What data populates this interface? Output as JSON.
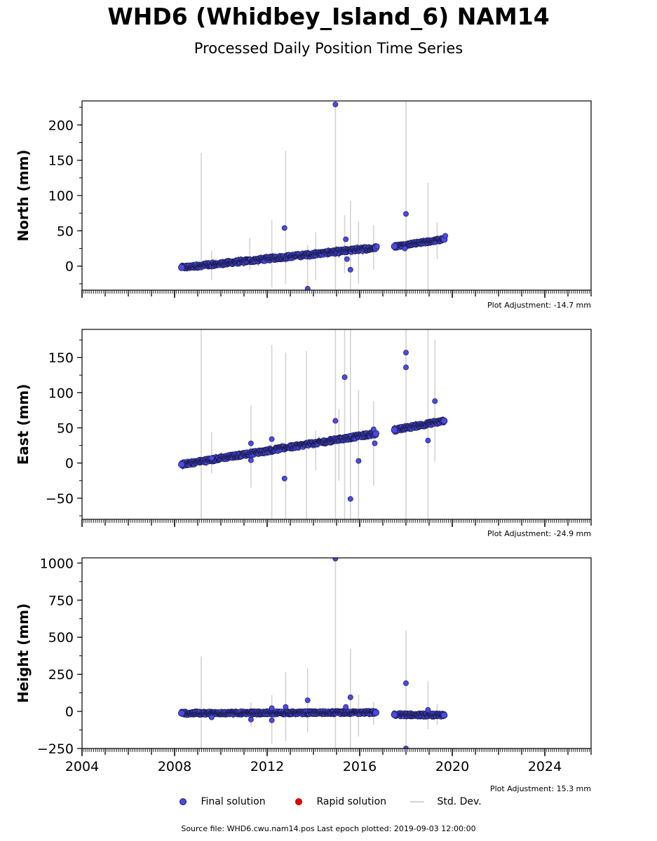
{
  "header": {
    "title": "WHD6 (Whidbey_Island_6) NAM14",
    "subtitle": "Processed Daily Position Time Series"
  },
  "adjustments": {
    "north": "Plot Adjustment: -14.7 mm",
    "east": "Plot Adjustment: -24.9 mm",
    "height": "Plot Adjustment: 15.3 mm"
  },
  "legend": {
    "final": "Final solution",
    "rapid": "Rapid solution",
    "std": "Std. Dev."
  },
  "footer": "Source file: WHD6.cwu.nam14.pos  Last epoch plotted: 2019-09-03 12:00:00",
  "colors": {
    "final": "#4b4be8",
    "final_edge": "#1c1c50",
    "rapid": "#e00000",
    "stddev": "#d3d3d3"
  },
  "chart_data": [
    {
      "type": "scatter",
      "ylabel": "North (mm)",
      "xlim": [
        2004,
        2026
      ],
      "ylim": [
        -34,
        234
      ],
      "yticks": [
        0,
        50,
        100,
        150,
        200
      ],
      "xticks": [
        2004,
        2008,
        2012,
        2016,
        2020,
        2024
      ],
      "xticklabels_visible": false,
      "segments": [
        {
          "x0": 2008.3,
          "x1": 2016.7,
          "y0": -2,
          "y1": 26,
          "jitter": 3
        },
        {
          "x0": 2017.5,
          "x1": 2019.65,
          "y0": 28,
          "y1": 38,
          "jitter": 2.5
        }
      ],
      "outliers": [
        {
          "x": 2014.95,
          "y": 229
        },
        {
          "x": 2012.75,
          "y": 54
        },
        {
          "x": 2018.0,
          "y": 74
        },
        {
          "x": 2015.4,
          "y": 38
        },
        {
          "x": 2015.45,
          "y": 10
        },
        {
          "x": 2015.6,
          "y": -5
        },
        {
          "x": 2013.75,
          "y": -32
        },
        {
          "x": 2017.95,
          "y": 25
        },
        {
          "x": 2016.75,
          "y": 28
        },
        {
          "x": 2019.7,
          "y": 43
        }
      ],
      "stddev_bars": [
        {
          "x": 2009.15,
          "lo": -5,
          "hi": 160
        },
        {
          "x": 2009.6,
          "lo": -20,
          "hi": 22
        },
        {
          "x": 2011.25,
          "lo": -5,
          "hi": 40
        },
        {
          "x": 2012.2,
          "lo": -30,
          "hi": 65
        },
        {
          "x": 2012.8,
          "lo": -25,
          "hi": 163
        },
        {
          "x": 2013.75,
          "lo": -34,
          "hi": 30
        },
        {
          "x": 2014.1,
          "lo": -20,
          "hi": 48
        },
        {
          "x": 2014.95,
          "lo": -34,
          "hi": 234
        },
        {
          "x": 2015.35,
          "lo": -10,
          "hi": 72
        },
        {
          "x": 2015.6,
          "lo": -34,
          "hi": 92
        },
        {
          "x": 2015.95,
          "lo": -25,
          "hi": 63
        },
        {
          "x": 2016.6,
          "lo": -5,
          "hi": 58
        },
        {
          "x": 2018.0,
          "lo": -34,
          "hi": 234
        },
        {
          "x": 2018.95,
          "lo": -34,
          "hi": 118
        },
        {
          "x": 2019.35,
          "lo": 10,
          "hi": 62
        }
      ]
    },
    {
      "type": "scatter",
      "ylabel": "East (mm)",
      "xlim": [
        2004,
        2026
      ],
      "ylim": [
        -80,
        190
      ],
      "yticks": [
        -50,
        0,
        50,
        100,
        150
      ],
      "xticks": [
        2004,
        2008,
        2012,
        2016,
        2020,
        2024
      ],
      "xticklabels_visible": false,
      "segments": [
        {
          "x0": 2008.3,
          "x1": 2016.7,
          "y0": -2,
          "y1": 42,
          "jitter": 3
        },
        {
          "x0": 2017.5,
          "x1": 2019.65,
          "y0": 47,
          "y1": 60,
          "jitter": 3
        }
      ],
      "outliers": [
        {
          "x": 2018.0,
          "y": 157
        },
        {
          "x": 2018.0,
          "y": 136
        },
        {
          "x": 2015.35,
          "y": 122
        },
        {
          "x": 2019.25,
          "y": 88
        },
        {
          "x": 2014.95,
          "y": 60
        },
        {
          "x": 2016.6,
          "y": 48
        },
        {
          "x": 2012.2,
          "y": 34
        },
        {
          "x": 2011.3,
          "y": 28
        },
        {
          "x": 2016.65,
          "y": 28
        },
        {
          "x": 2018.95,
          "y": 32
        },
        {
          "x": 2011.3,
          "y": 4
        },
        {
          "x": 2015.95,
          "y": 3
        },
        {
          "x": 2012.75,
          "y": -22
        },
        {
          "x": 2015.6,
          "y": -51
        },
        {
          "x": 2009.6,
          "y": 7
        }
      ],
      "stddev_bars": [
        {
          "x": 2009.15,
          "lo": -80,
          "hi": 190
        },
        {
          "x": 2009.6,
          "lo": -15,
          "hi": 44
        },
        {
          "x": 2011.3,
          "lo": -35,
          "hi": 82
        },
        {
          "x": 2012.2,
          "lo": -80,
          "hi": 168
        },
        {
          "x": 2012.8,
          "lo": -80,
          "hi": 157
        },
        {
          "x": 2013.7,
          "lo": -80,
          "hi": 159
        },
        {
          "x": 2014.1,
          "lo": -10,
          "hi": 46
        },
        {
          "x": 2014.95,
          "lo": -80,
          "hi": 190
        },
        {
          "x": 2015.1,
          "lo": -25,
          "hi": 77
        },
        {
          "x": 2015.35,
          "lo": -80,
          "hi": 190
        },
        {
          "x": 2015.6,
          "lo": -80,
          "hi": 190
        },
        {
          "x": 2015.95,
          "lo": -80,
          "hi": 104
        },
        {
          "x": 2016.6,
          "lo": -32,
          "hi": 88
        },
        {
          "x": 2018.0,
          "lo": -80,
          "hi": 190
        },
        {
          "x": 2018.95,
          "lo": -80,
          "hi": 190
        },
        {
          "x": 2019.25,
          "lo": 2,
          "hi": 175
        }
      ]
    },
    {
      "type": "scatter",
      "ylabel": "Height (mm)",
      "xlim": [
        2004,
        2026
      ],
      "ylim": [
        -250,
        1035
      ],
      "yticks": [
        -250,
        0,
        250,
        500,
        750,
        1000
      ],
      "xticks": [
        2004,
        2008,
        2012,
        2016,
        2020,
        2024
      ],
      "xticklabels": [
        "2004",
        "2008",
        "2012",
        "2016",
        "2020",
        "2024"
      ],
      "xticklabels_visible": true,
      "segments": [
        {
          "x0": 2008.3,
          "x1": 2016.7,
          "y0": -12,
          "y1": -8,
          "jitter": 12
        },
        {
          "x0": 2017.5,
          "x1": 2019.65,
          "y0": -22,
          "y1": -26,
          "jitter": 12
        }
      ],
      "outliers": [
        {
          "x": 2014.95,
          "y": 1030
        },
        {
          "x": 2018.0,
          "y": 190
        },
        {
          "x": 2015.6,
          "y": 95
        },
        {
          "x": 2013.75,
          "y": 75
        },
        {
          "x": 2015.4,
          "y": 30
        },
        {
          "x": 2012.8,
          "y": 30
        },
        {
          "x": 2012.2,
          "y": 22
        },
        {
          "x": 2018.95,
          "y": 10
        },
        {
          "x": 2012.2,
          "y": -60
        },
        {
          "x": 2011.3,
          "y": -55
        },
        {
          "x": 2009.6,
          "y": -40
        },
        {
          "x": 2018.0,
          "y": -250
        }
      ],
      "stddev_bars": [
        {
          "x": 2009.15,
          "lo": -250,
          "hi": 370
        },
        {
          "x": 2011.3,
          "lo": -100,
          "hi": 60
        },
        {
          "x": 2012.2,
          "lo": -220,
          "hi": 110
        },
        {
          "x": 2012.8,
          "lo": -200,
          "hi": 265
        },
        {
          "x": 2013.75,
          "lo": -140,
          "hi": 290
        },
        {
          "x": 2014.95,
          "lo": -250,
          "hi": 1035
        },
        {
          "x": 2015.6,
          "lo": -250,
          "hi": 420
        },
        {
          "x": 2015.95,
          "lo": -170,
          "hi": 115
        },
        {
          "x": 2016.6,
          "lo": -90,
          "hi": 65
        },
        {
          "x": 2018.0,
          "lo": -250,
          "hi": 545
        },
        {
          "x": 2018.95,
          "lo": -120,
          "hi": 205
        },
        {
          "x": 2019.35,
          "lo": -90,
          "hi": 50
        }
      ]
    }
  ]
}
